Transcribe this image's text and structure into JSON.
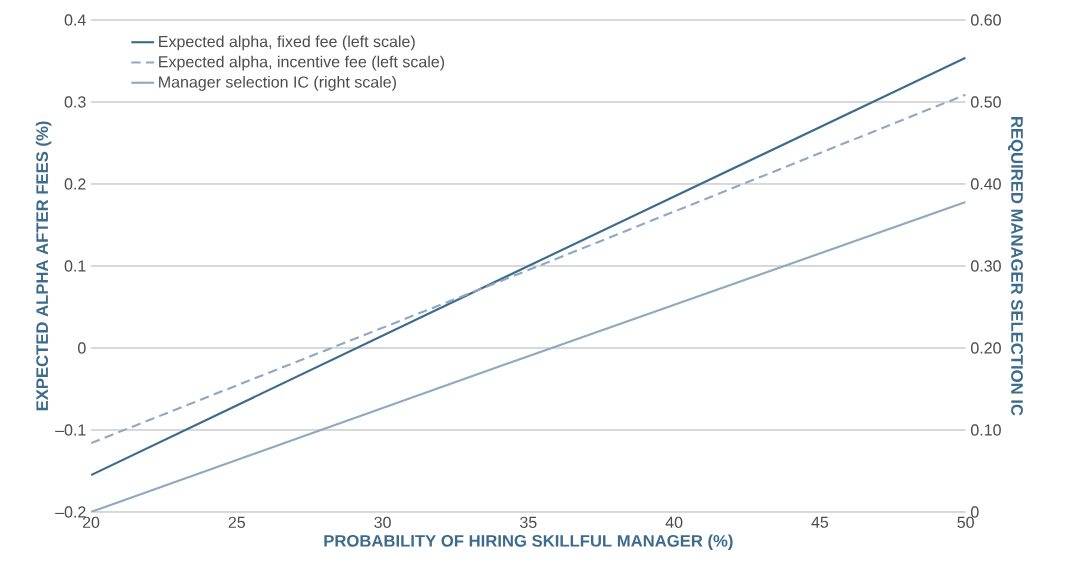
{
  "chart_data": {
    "type": "line",
    "xlabel": "PROBABILITY OF HIRING SKILLFUL MANAGER (%)",
    "ylabel": "EXPECTED ALPHA AFTER FEES (%)",
    "y2label": "REQUIRED MANAGER SELECTION IC",
    "x": [
      20,
      35,
      50
    ],
    "series": [
      {
        "name": "Expected alpha, fixed fee (left scale)",
        "color": "#3d6b8c",
        "values": [
          -0.155,
          0.1,
          0.354
        ],
        "line_style": "solid"
      },
      {
        "name": "Expected alpha, incentive fee (left scale)",
        "color": "#8fa9c2",
        "values": [
          -0.116,
          0.095,
          0.309
        ],
        "line_style": "dashed"
      },
      {
        "name": "Manager selection IC (right scale)",
        "color": "#8fa9c2",
        "values": [
          0,
          0.19,
          0.378
        ],
        "line_style": "solid",
        "axis": "y2"
      }
    ],
    "xlim": [
      20,
      50
    ],
    "xticks": [
      20,
      25,
      30,
      35,
      40,
      45,
      50
    ],
    "ylim": [
      -0.2,
      0.4
    ],
    "yticks": [
      {
        "value": -0.2,
        "label": "–0.2"
      },
      {
        "value": -0.1,
        "label": "–0.1"
      },
      0,
      0.1,
      0.2,
      0.3,
      0.4
    ],
    "y2lim": [
      0,
      0.6
    ],
    "y2ticks": [
      0,
      {
        "value": 0.1,
        "label": "0.10"
      },
      {
        "value": 0.2,
        "label": "0.20"
      },
      {
        "value": 0.3,
        "label": "0.30"
      },
      {
        "value": 0.4,
        "label": "0.40"
      },
      {
        "value": 0.5,
        "label": "0.50"
      },
      {
        "value": 0.6,
        "label": "0.60"
      }
    ],
    "grid": "y",
    "legend": "top left"
  }
}
